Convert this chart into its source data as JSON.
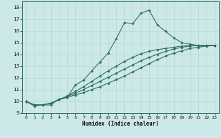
{
  "xlabel": "Humidex (Indice chaleur)",
  "background_color": "#cce8e8",
  "grid_color_major": "#b8d4d4",
  "grid_color_minor": "#d4e8e8",
  "line_color": "#2e7060",
  "xlim": [
    -0.5,
    23.5
  ],
  "ylim": [
    9,
    18.5
  ],
  "xticks": [
    0,
    1,
    2,
    3,
    4,
    5,
    6,
    7,
    8,
    9,
    10,
    11,
    12,
    13,
    14,
    15,
    16,
    17,
    18,
    19,
    20,
    21,
    22,
    23
  ],
  "yticks": [
    9,
    10,
    11,
    12,
    13,
    14,
    15,
    16,
    17,
    18
  ],
  "line1_x": [
    0,
    1,
    2,
    3,
    4,
    5,
    6,
    7,
    8,
    9,
    10,
    11,
    12,
    13,
    14,
    15,
    16,
    17,
    18,
    19,
    20,
    21,
    22,
    23
  ],
  "line1_y": [
    10.0,
    9.6,
    9.7,
    9.7,
    10.2,
    10.35,
    11.4,
    11.8,
    12.6,
    13.35,
    14.1,
    15.35,
    16.7,
    16.6,
    17.5,
    17.75,
    16.5,
    15.95,
    15.4,
    15.0,
    14.85,
    14.75,
    14.75,
    14.75
  ],
  "line2_x": [
    0,
    1,
    2,
    3,
    4,
    5,
    6,
    7,
    8,
    9,
    10,
    11,
    12,
    13,
    14,
    15,
    16,
    17,
    18,
    19,
    20,
    21,
    22,
    23
  ],
  "line2_y": [
    10.0,
    9.7,
    9.7,
    9.85,
    10.15,
    10.35,
    10.55,
    10.75,
    11.0,
    11.25,
    11.55,
    11.85,
    12.15,
    12.5,
    12.85,
    13.2,
    13.55,
    13.85,
    14.1,
    14.3,
    14.5,
    14.6,
    14.7,
    14.75
  ],
  "line3_x": [
    0,
    1,
    2,
    3,
    4,
    5,
    6,
    7,
    8,
    9,
    10,
    11,
    12,
    13,
    14,
    15,
    16,
    17,
    18,
    19,
    20,
    21,
    22,
    23
  ],
  "line3_y": [
    10.0,
    9.7,
    9.7,
    9.85,
    10.15,
    10.4,
    10.7,
    11.0,
    11.35,
    11.7,
    12.05,
    12.4,
    12.75,
    13.1,
    13.45,
    13.75,
    14.0,
    14.25,
    14.45,
    14.6,
    14.7,
    14.75,
    14.75,
    14.75
  ],
  "line4_x": [
    0,
    1,
    2,
    3,
    4,
    5,
    6,
    7,
    8,
    9,
    10,
    11,
    12,
    13,
    14,
    15,
    16,
    17,
    18,
    19,
    20,
    21,
    22,
    23
  ],
  "line4_y": [
    10.0,
    9.7,
    9.7,
    9.85,
    10.15,
    10.45,
    10.85,
    11.25,
    11.7,
    12.15,
    12.6,
    13.0,
    13.4,
    13.75,
    14.05,
    14.25,
    14.4,
    14.5,
    14.6,
    14.7,
    14.75,
    14.75,
    14.75,
    14.75
  ]
}
